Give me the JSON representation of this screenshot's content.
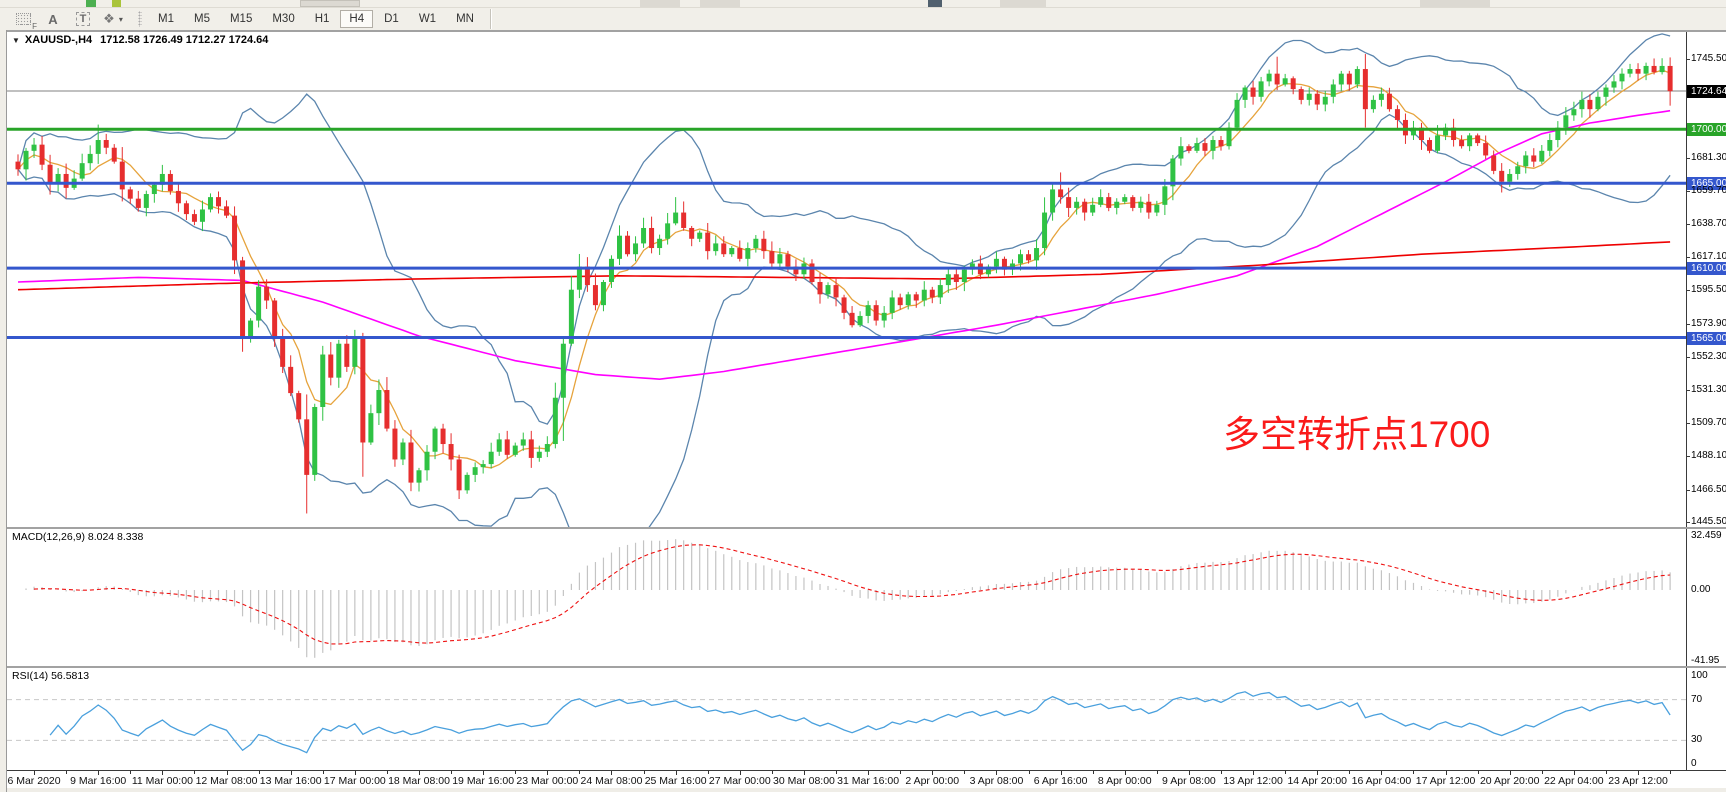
{
  "toolbar": {
    "tools": [
      {
        "name": "dotted-grid-f-icon",
        "label": "F"
      },
      {
        "name": "letter-a-tool-icon",
        "label": "A"
      },
      {
        "name": "text-tool-icon",
        "label": "T"
      },
      {
        "name": "objects-tool-icon",
        "label": "❖",
        "caret": "▾"
      }
    ],
    "timeframes": [
      "M1",
      "M5",
      "M15",
      "M30",
      "H1",
      "H4",
      "D1",
      "W1",
      "MN"
    ],
    "active_timeframe": "H4"
  },
  "chart_header": {
    "collapse_arrow": "▼",
    "symbol": "XAUUSD-,H4",
    "ohlc": "1712.58 1726.49 1712.27 1724.64"
  },
  "annotation": {
    "text": "多空转折点1700",
    "color": "#fa1a1a"
  },
  "price_axis": {
    "ticks": [
      {
        "label": "1745.50",
        "value": 1745.5,
        "style": "plain"
      },
      {
        "label": "1724.64",
        "value": 1724.64,
        "style": "current"
      },
      {
        "label": "1700.00",
        "value": 1700,
        "style": "green"
      },
      {
        "label": "1681.30",
        "value": 1681.3,
        "style": "plain"
      },
      {
        "label": "1665.00",
        "value": 1665,
        "style": "blue"
      },
      {
        "label": "1659.70",
        "value": 1659.7,
        "style": "plain"
      },
      {
        "label": "1638.70",
        "value": 1638.7,
        "style": "plain"
      },
      {
        "label": "1617.10",
        "value": 1617.1,
        "style": "plain"
      },
      {
        "label": "1610.00",
        "value": 1610,
        "style": "blue"
      },
      {
        "label": "1595.50",
        "value": 1595.5,
        "style": "plain"
      },
      {
        "label": "1573.90",
        "value": 1573.9,
        "style": "plain"
      },
      {
        "label": "1565.00",
        "value": 1565,
        "style": "blue"
      },
      {
        "label": "1552.30",
        "value": 1552.3,
        "style": "plain"
      },
      {
        "label": "1531.30",
        "value": 1531.3,
        "style": "plain"
      },
      {
        "label": "1509.70",
        "value": 1509.7,
        "style": "plain"
      },
      {
        "label": "1488.10",
        "value": 1488.1,
        "style": "plain"
      },
      {
        "label": "1466.50",
        "value": 1466.5,
        "style": "plain"
      },
      {
        "label": "1445.50",
        "value": 1445.5,
        "style": "plain"
      }
    ]
  },
  "levels": {
    "current_price": 1724.64,
    "green_lines": [
      1700
    ],
    "blue_lines": [
      1665,
      1610,
      1565
    ]
  },
  "macd_panel": {
    "label": "MACD(12,26,9) 8.024 8.338",
    "axis_labels": [
      {
        "label": "32.459",
        "value": 32.459
      },
      {
        "label": "0.00",
        "value": 0
      },
      {
        "label": "-41.95",
        "value": -41.95
      }
    ]
  },
  "rsi_panel": {
    "label": "RSI(14) 56.5813",
    "axis_labels": [
      {
        "label": "100",
        "value": 100
      },
      {
        "label": "70",
        "value": 70
      },
      {
        "label": "30",
        "value": 30
      },
      {
        "label": "0",
        "value": 0
      }
    ],
    "dashed_levels": [
      70,
      30
    ]
  },
  "time_axis": {
    "labels": [
      "6 Mar 2020",
      "9 Mar 16:00",
      "11 Mar 00:00",
      "12 Mar 08:00",
      "13 Mar 16:00",
      "17 Mar 00:00",
      "18 Mar 08:00",
      "19 Mar 16:00",
      "23 Mar 00:00",
      "24 Mar 08:00",
      "25 Mar 16:00",
      "27 Mar 00:00",
      "30 Mar 08:00",
      "31 Mar 16:00",
      "2 Apr 00:00",
      "3 Apr 08:00",
      "6 Apr 16:00",
      "8 Apr 00:00",
      "9 Apr 08:00",
      "13 Apr 12:00",
      "14 Apr 20:00",
      "16 Apr 04:00",
      "17 Apr 12:00",
      "20 Apr 20:00",
      "22 Apr 04:00",
      "23 Apr 12:00"
    ],
    "first_label_candle_index": 2,
    "candles_per_label": 8
  },
  "colors": {
    "bull": "#2fc244",
    "bear": "#e62e2e",
    "bollinger": "#5b85ad",
    "ma_fast": "#e6a33c",
    "ma_mid": "#ff00ff",
    "ma_slow": "#ee0000",
    "rsi_line": "#4aa0dd",
    "level_green": "#28a428",
    "level_blue": "#3457cd",
    "current_line": "#808080",
    "macd_hist": "#c4c4c4",
    "macd_signal": "#ee1111",
    "dashed_level": "#c8c8c8"
  },
  "chart_data": {
    "type": "candlestick",
    "symbol": "XAUUSD",
    "timeframe": "H4",
    "closes": [
      1674,
      1686,
      1690,
      1677,
      1665,
      1671,
      1662,
      1668,
      1678,
      1684,
      1693,
      1688,
      1679,
      1661,
      1655,
      1649,
      1658,
      1664,
      1671,
      1660,
      1652,
      1645,
      1640,
      1648,
      1656,
      1650,
      1644,
      1615,
      1565,
      1576,
      1598,
      1589,
      1566,
      1546,
      1529,
      1512,
      1476,
      1520,
      1554,
      1539,
      1561,
      1546,
      1566,
      1497,
      1516,
      1531,
      1506,
      1486,
      1497,
      1471,
      1479,
      1491,
      1506,
      1496,
      1486,
      1466,
      1476,
      1481,
      1483,
      1491,
      1499,
      1489,
      1495,
      1499,
      1487,
      1491,
      1496,
      1526,
      1561,
      1596,
      1611,
      1599,
      1586,
      1601,
      1616,
      1631,
      1619,
      1626,
      1636,
      1623,
      1629,
      1639,
      1646,
      1636,
      1629,
      1633,
      1621,
      1626,
      1619,
      1623,
      1616,
      1623,
      1629,
      1621,
      1613,
      1619,
      1611,
      1606,
      1613,
      1601,
      1593,
      1599,
      1591,
      1581,
      1573,
      1579,
      1586,
      1576,
      1581,
      1591,
      1586,
      1593,
      1589,
      1596,
      1591,
      1599,
      1606,
      1601,
      1609,
      1613,
      1606,
      1611,
      1616,
      1609,
      1613,
      1619,
      1615,
      1623,
      1646,
      1661,
      1656,
      1649,
      1653,
      1646,
      1651,
      1656,
      1649,
      1653,
      1656,
      1649,
      1653,
      1646,
      1651,
      1663,
      1681,
      1689,
      1686,
      1691,
      1686,
      1693,
      1689,
      1701,
      1719,
      1727,
      1721,
      1731,
      1736,
      1729,
      1733,
      1726,
      1719,
      1723,
      1716,
      1721,
      1729,
      1736,
      1729,
      1739,
      1713,
      1719,
      1723,
      1713,
      1706,
      1696,
      1701,
      1693,
      1686,
      1696,
      1701,
      1693,
      1689,
      1696,
      1691,
      1683,
      1673,
      1666,
      1671,
      1676,
      1683,
      1679,
      1686,
      1693,
      1701,
      1709,
      1713,
      1719,
      1713,
      1721,
      1727,
      1731,
      1736,
      1739,
      1736,
      1741,
      1737,
      1741,
      1724.64
    ],
    "wick_overrides": {
      "10": {
        "high": 1703
      },
      "27": {
        "high": 1650
      },
      "36": {
        "low": 1451
      },
      "43": {
        "high": 1568
      },
      "68": {
        "low": 1498
      },
      "82": {
        "high": 1656
      },
      "130": {
        "high": 1672
      },
      "157": {
        "high": 1747
      },
      "185": {
        "low": 1659
      },
      "205": {
        "high": 1746
      }
    },
    "ma_slow_anchors": [
      [
        0,
        1596
      ],
      [
        25,
        1600
      ],
      [
        50,
        1603
      ],
      [
        75,
        1605
      ],
      [
        95,
        1604
      ],
      [
        115,
        1603
      ],
      [
        135,
        1606
      ],
      [
        155,
        1612
      ],
      [
        175,
        1619
      ],
      [
        195,
        1624
      ],
      [
        206,
        1627
      ]
    ],
    "ma_mid_anchors": [
      [
        0,
        1601
      ],
      [
        15,
        1604
      ],
      [
        28,
        1602
      ],
      [
        38,
        1588
      ],
      [
        50,
        1566
      ],
      [
        62,
        1550
      ],
      [
        72,
        1541
      ],
      [
        80,
        1538
      ],
      [
        88,
        1543
      ],
      [
        96,
        1550
      ],
      [
        104,
        1557
      ],
      [
        112,
        1564
      ],
      [
        122,
        1573
      ],
      [
        132,
        1583
      ],
      [
        142,
        1593
      ],
      [
        152,
        1605
      ],
      [
        162,
        1624
      ],
      [
        170,
        1645
      ],
      [
        178,
        1666
      ],
      [
        184,
        1683
      ],
      [
        190,
        1697
      ],
      [
        196,
        1704
      ],
      [
        202,
        1709
      ],
      [
        206,
        1712
      ]
    ],
    "macd_current": "8.024 8.338",
    "rsi_current": 56.5813
  }
}
